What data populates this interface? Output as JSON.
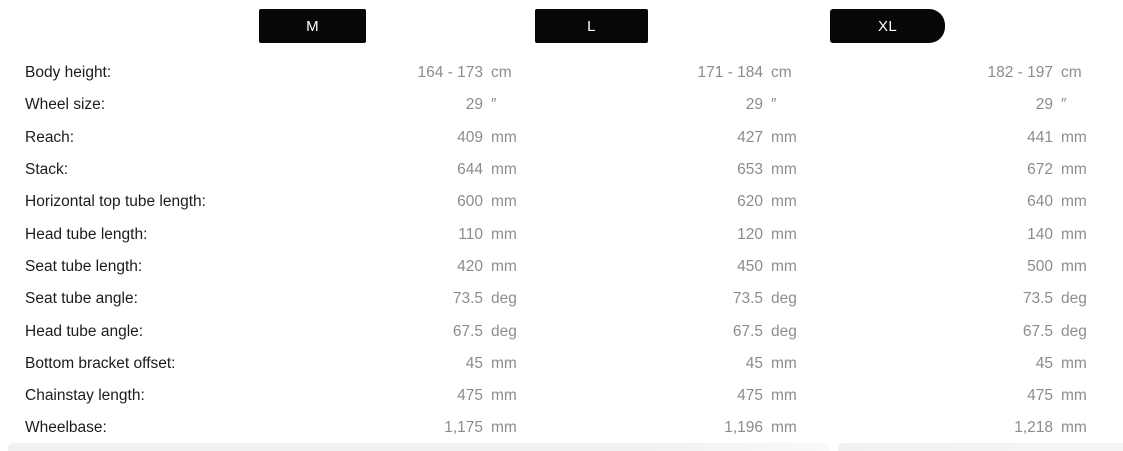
{
  "size_tabs": [
    {
      "label": "M"
    },
    {
      "label": "L"
    },
    {
      "label": "XL"
    }
  ],
  "colors": {
    "tab_background": "#070707",
    "tab_text": "#ffffff",
    "label_text": "#1c1c1c",
    "value_text": "#8c8c8c",
    "next_row_strip": "#f1f1f1"
  },
  "table": {
    "rows": [
      {
        "label": "Body height:",
        "m": {
          "value": "164 - 173",
          "unit": "cm"
        },
        "l": {
          "value": "171 - 184",
          "unit": "cm"
        },
        "xl": {
          "value": "182 - 197",
          "unit": "cm"
        }
      },
      {
        "label": "Wheel size:",
        "m": {
          "value": "29",
          "unit": "″"
        },
        "l": {
          "value": "29",
          "unit": "″"
        },
        "xl": {
          "value": "29",
          "unit": "″"
        }
      },
      {
        "label": "Reach:",
        "m": {
          "value": "409",
          "unit": "mm"
        },
        "l": {
          "value": "427",
          "unit": "mm"
        },
        "xl": {
          "value": "441",
          "unit": "mm"
        }
      },
      {
        "label": "Stack:",
        "m": {
          "value": "644",
          "unit": "mm"
        },
        "l": {
          "value": "653",
          "unit": "mm"
        },
        "xl": {
          "value": "672",
          "unit": "mm"
        }
      },
      {
        "label": "Horizontal top tube length:",
        "m": {
          "value": "600",
          "unit": "mm"
        },
        "l": {
          "value": "620",
          "unit": "mm"
        },
        "xl": {
          "value": "640",
          "unit": "mm"
        }
      },
      {
        "label": "Head tube length:",
        "m": {
          "value": "110",
          "unit": "mm"
        },
        "l": {
          "value": "120",
          "unit": "mm"
        },
        "xl": {
          "value": "140",
          "unit": "mm"
        }
      },
      {
        "label": "Seat tube length:",
        "m": {
          "value": "420",
          "unit": "mm"
        },
        "l": {
          "value": "450",
          "unit": "mm"
        },
        "xl": {
          "value": "500",
          "unit": "mm"
        }
      },
      {
        "label": "Seat tube angle:",
        "m": {
          "value": "73.5",
          "unit": "deg"
        },
        "l": {
          "value": "73.5",
          "unit": "deg"
        },
        "xl": {
          "value": "73.5",
          "unit": "deg"
        }
      },
      {
        "label": "Head tube angle:",
        "m": {
          "value": "67.5",
          "unit": "deg"
        },
        "l": {
          "value": "67.5",
          "unit": "deg"
        },
        "xl": {
          "value": "67.5",
          "unit": "deg"
        }
      },
      {
        "label": "Bottom bracket offset:",
        "m": {
          "value": "45",
          "unit": "mm"
        },
        "l": {
          "value": "45",
          "unit": "mm"
        },
        "xl": {
          "value": "45",
          "unit": "mm"
        }
      },
      {
        "label": "Chainstay length:",
        "m": {
          "value": "475",
          "unit": "mm"
        },
        "l": {
          "value": "475",
          "unit": "mm"
        },
        "xl": {
          "value": "475",
          "unit": "mm"
        }
      },
      {
        "label": "Wheelbase:",
        "m": {
          "value": "1,175",
          "unit": "mm"
        },
        "l": {
          "value": "1,196",
          "unit": "mm"
        },
        "xl": {
          "value": "1,218",
          "unit": "mm"
        }
      }
    ]
  }
}
